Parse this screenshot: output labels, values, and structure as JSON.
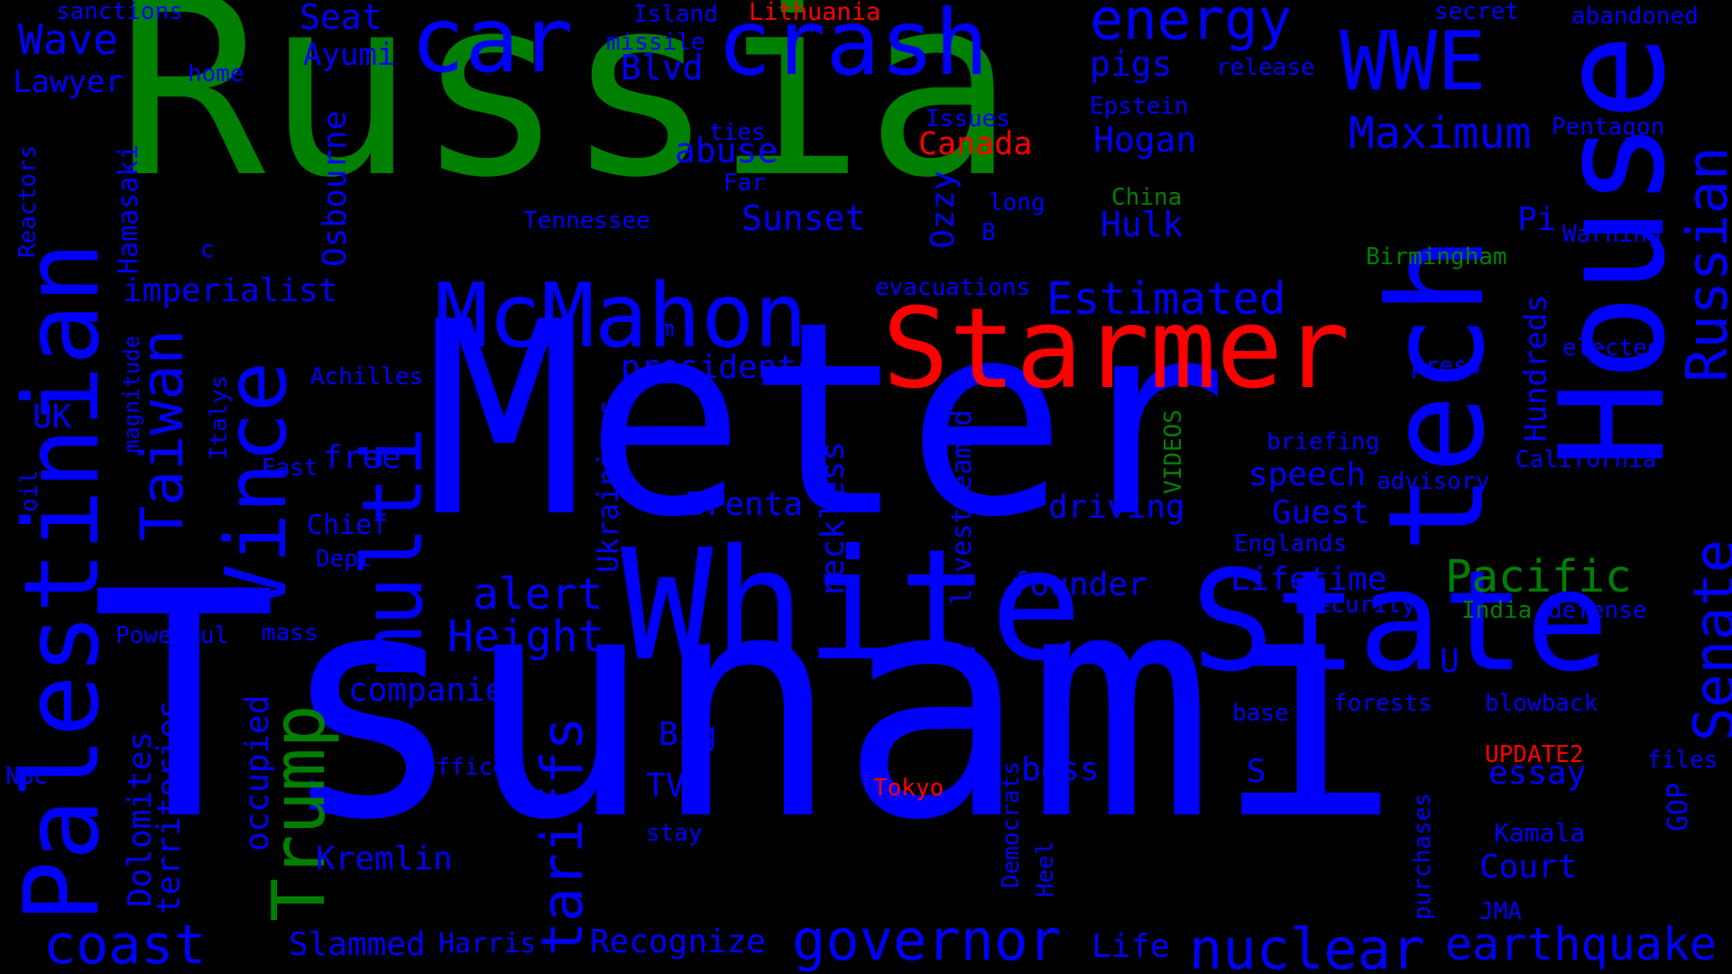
{
  "palette": {
    "background": "#000000",
    "blue": "#0000ff",
    "green": "#008000",
    "red": "#ff0000"
  },
  "words": [
    {
      "text": "Russia",
      "color": "green"
    },
    {
      "text": "Meter",
      "color": "blue"
    },
    {
      "text": "Tsunami",
      "color": "blue"
    },
    {
      "text": "White",
      "color": "blue"
    },
    {
      "text": "State",
      "color": "blue"
    },
    {
      "text": "Starmer",
      "color": "red"
    },
    {
      "text": "McMahon",
      "color": "blue"
    },
    {
      "text": "crash",
      "color": "blue"
    },
    {
      "text": "car",
      "color": "blue"
    },
    {
      "text": "energy",
      "color": "blue"
    },
    {
      "text": "WWE",
      "color": "blue"
    },
    {
      "text": "tech",
      "color": "blue"
    },
    {
      "text": "House",
      "color": "blue"
    },
    {
      "text": "Palestinian",
      "color": "blue"
    },
    {
      "text": "Taiwan",
      "color": "blue"
    },
    {
      "text": "Vince",
      "color": "blue"
    },
    {
      "text": "multi",
      "color": "blue"
    },
    {
      "text": "Trump",
      "color": "green"
    },
    {
      "text": "tariffs",
      "color": "blue"
    },
    {
      "text": "governor",
      "color": "blue"
    },
    {
      "text": "nuclear",
      "color": "blue"
    },
    {
      "text": "earthquake",
      "color": "blue"
    },
    {
      "text": "coast",
      "color": "blue"
    },
    {
      "text": "Senate",
      "color": "blue"
    },
    {
      "text": "Russian",
      "color": "blue"
    },
    {
      "text": "Pacific",
      "color": "green"
    },
    {
      "text": "Estimated",
      "color": "blue"
    },
    {
      "text": "Maximum",
      "color": "blue"
    },
    {
      "text": "Height",
      "color": "blue"
    },
    {
      "text": "alert",
      "color": "blue"
    },
    {
      "text": "presidents",
      "color": "blue"
    },
    {
      "text": "imperialist",
      "color": "blue"
    },
    {
      "text": "Canada",
      "color": "red"
    },
    {
      "text": "Lithuania",
      "color": "red"
    },
    {
      "text": "UPDATE2",
      "color": "red"
    },
    {
      "text": "Tokyo",
      "color": "red"
    },
    {
      "text": "China",
      "color": "green"
    },
    {
      "text": "Birmingham",
      "color": "green"
    },
    {
      "text": "India",
      "color": "green"
    },
    {
      "text": "VIDEOS",
      "color": "green"
    },
    {
      "text": "Hogan",
      "color": "blue"
    },
    {
      "text": "Hulk",
      "color": "blue"
    },
    {
      "text": "Sunset",
      "color": "blue"
    },
    {
      "text": "Blvd",
      "color": "blue"
    },
    {
      "text": "abuse",
      "color": "blue"
    },
    {
      "text": "pigs",
      "color": "blue"
    },
    {
      "text": "Seat",
      "color": "blue"
    },
    {
      "text": "Ayumi",
      "color": "blue"
    },
    {
      "text": "Wave",
      "color": "blue"
    },
    {
      "text": "Lawyer",
      "color": "blue"
    },
    {
      "text": "sanctions",
      "color": "blue"
    },
    {
      "text": "home",
      "color": "blue"
    },
    {
      "text": "missile",
      "color": "blue"
    },
    {
      "text": "Island",
      "color": "blue"
    },
    {
      "text": "secret",
      "color": "blue"
    },
    {
      "text": "abandoned",
      "color": "blue"
    },
    {
      "text": "release",
      "color": "blue"
    },
    {
      "text": "Epstein",
      "color": "blue"
    },
    {
      "text": "Issues",
      "color": "blue"
    },
    {
      "text": "ties",
      "color": "blue"
    },
    {
      "text": "Far",
      "color": "blue"
    },
    {
      "text": "Tennessee",
      "color": "blue"
    },
    {
      "text": "long",
      "color": "blue"
    },
    {
      "text": "Pentagon",
      "color": "blue"
    },
    {
      "text": "Pi",
      "color": "blue"
    },
    {
      "text": "Warning",
      "color": "blue"
    },
    {
      "text": "evacuations",
      "color": "blue"
    },
    {
      "text": "elected",
      "color": "blue"
    },
    {
      "text": "press",
      "color": "blue"
    },
    {
      "text": "Hundreds",
      "color": "blue"
    },
    {
      "text": "briefing",
      "color": "blue"
    },
    {
      "text": "California",
      "color": "blue"
    },
    {
      "text": "speech",
      "color": "blue"
    },
    {
      "text": "advisory",
      "color": "blue"
    },
    {
      "text": "Guest",
      "color": "blue"
    },
    {
      "text": "Englands",
      "color": "blue"
    },
    {
      "text": "Lifetime",
      "color": "blue"
    },
    {
      "text": "Security",
      "color": "blue"
    },
    {
      "text": "defense",
      "color": "blue"
    },
    {
      "text": "forests",
      "color": "blue"
    },
    {
      "text": "blowback",
      "color": "blue"
    },
    {
      "text": "base",
      "color": "blue"
    },
    {
      "text": "essay",
      "color": "blue"
    },
    {
      "text": "files",
      "color": "blue"
    },
    {
      "text": "GOP",
      "color": "blue"
    },
    {
      "text": "Kamala",
      "color": "blue"
    },
    {
      "text": "Court",
      "color": "blue"
    },
    {
      "text": "JMA",
      "color": "blue"
    },
    {
      "text": "purchases",
      "color": "blue"
    },
    {
      "text": "Life",
      "color": "blue"
    },
    {
      "text": "boss",
      "color": "blue"
    },
    {
      "text": "Democrats",
      "color": "blue"
    },
    {
      "text": "Heel",
      "color": "blue"
    },
    {
      "text": "Recognize",
      "color": "blue"
    },
    {
      "text": "Harris",
      "color": "blue"
    },
    {
      "text": "Slammed",
      "color": "blue"
    },
    {
      "text": "Kremlin",
      "color": "blue"
    },
    {
      "text": "stay",
      "color": "blue"
    },
    {
      "text": "TV",
      "color": "blue"
    },
    {
      "text": "Big",
      "color": "blue"
    },
    {
      "text": "office",
      "color": "blue"
    },
    {
      "text": "companies",
      "color": "blue"
    },
    {
      "text": "occupied",
      "color": "blue"
    },
    {
      "text": "territories",
      "color": "blue"
    },
    {
      "text": "Dolomites",
      "color": "blue"
    },
    {
      "text": "Powerful",
      "color": "blue"
    },
    {
      "text": "mass",
      "color": "blue"
    },
    {
      "text": "NBC",
      "color": "blue"
    },
    {
      "text": "Dept",
      "color": "blue"
    },
    {
      "text": "Chief",
      "color": "blue"
    },
    {
      "text": "East",
      "color": "blue"
    },
    {
      "text": "free",
      "color": "blue"
    },
    {
      "text": "Italys",
      "color": "blue"
    },
    {
      "text": "UK",
      "color": "blue"
    },
    {
      "text": "oil",
      "color": "blue"
    },
    {
      "text": "magnitude",
      "color": "blue"
    },
    {
      "text": "Achilles",
      "color": "blue"
    },
    {
      "text": "Hamasaki",
      "color": "blue"
    },
    {
      "text": "Reactors",
      "color": "blue"
    },
    {
      "text": "Osbourne",
      "color": "blue"
    },
    {
      "text": "Ozzy",
      "color": "blue"
    },
    {
      "text": "Ukrainians",
      "color": "blue"
    },
    {
      "text": "Brenta",
      "color": "blue"
    },
    {
      "text": "reckless",
      "color": "blue"
    },
    {
      "text": "livestreamed",
      "color": "blue"
    },
    {
      "text": "driving",
      "color": "blue"
    },
    {
      "text": "founder",
      "color": "blue"
    },
    {
      "text": "S",
      "color": "blue"
    },
    {
      "text": "U",
      "color": "blue"
    },
    {
      "text": "c",
      "color": "blue"
    },
    {
      "text": "m",
      "color": "blue"
    },
    {
      "text": "B",
      "color": "blue"
    }
  ]
}
